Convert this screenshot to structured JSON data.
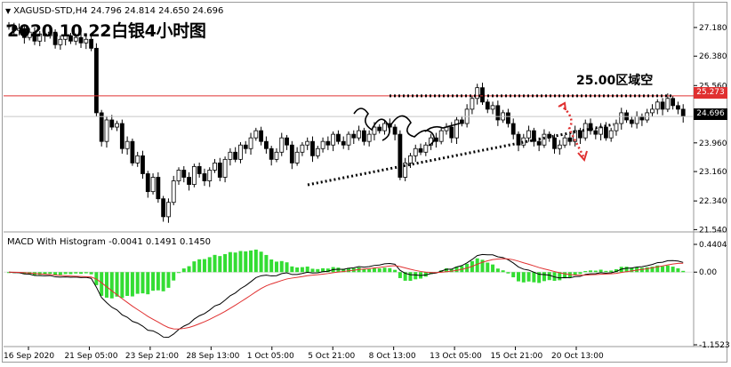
{
  "header": {
    "symbol": "XAGUSD-STD,H4",
    "ohlc": "24.796 24.814 24.650 24.696",
    "headline": "2020.10.22白银4小时图"
  },
  "annotations": {
    "zone_label": "25.00区域空",
    "resistance_level": 25.273,
    "current_price": 24.696
  },
  "macd": {
    "title": "MACD With Histogram",
    "values": "-0.0041 0.1491 0.1450",
    "y_ticks": [
      "0.4404",
      "0.00",
      "-1.1523"
    ]
  },
  "price_tags": {
    "resistance": "25.273",
    "current": "24.696"
  },
  "colors": {
    "bull": "#ffffff",
    "bear": "#000000",
    "resistance_line": "#e03030",
    "macd_hist": "#33dd33",
    "signal_line": "#e03030",
    "macd_line": "#000000",
    "arrow": "#e03030"
  },
  "chart_data": {
    "type": "candlestick",
    "title": "2020.10.22白银4小时图",
    "ylim": [
      21.5,
      27.6
    ],
    "y_ticks": [
      27.18,
      26.38,
      25.56,
      24.76,
      23.96,
      23.16,
      22.34,
      21.54
    ],
    "x_ticks": [
      "16 Sep 2020",
      "21 Sep 05:00",
      "23 Sep 21:00",
      "28 Sep 13:00",
      "1 Oct 05:00",
      "5 Oct 21:00",
      "8 Oct 13:00",
      "13 Oct 05:00",
      "15 Oct 21:00",
      "20 Oct 13:00"
    ],
    "close": [
      27.2,
      27.1,
      27.15,
      26.9,
      27.05,
      26.8,
      27.0,
      26.95,
      27.05,
      26.7,
      26.85,
      26.95,
      26.8,
      26.9,
      26.75,
      26.85,
      26.6,
      24.8,
      24.0,
      24.6,
      24.4,
      24.5,
      23.8,
      24.0,
      23.4,
      23.6,
      23.1,
      22.6,
      23.0,
      22.4,
      21.9,
      22.3,
      22.9,
      23.2,
      23.0,
      22.8,
      23.3,
      23.1,
      22.9,
      23.2,
      23.4,
      23.0,
      23.5,
      23.7,
      23.5,
      23.9,
      23.8,
      24.1,
      24.3,
      24.0,
      23.8,
      23.5,
      23.7,
      24.1,
      23.9,
      23.4,
      23.7,
      23.9,
      24.0,
      23.6,
      23.8,
      24.0,
      23.9,
      24.2,
      24.0,
      23.9,
      24.2,
      24.1,
      24.3,
      24.0,
      24.2,
      24.4,
      24.3,
      24.5,
      24.4,
      24.2,
      23.0,
      23.4,
      23.6,
      23.8,
      23.7,
      23.9,
      24.1,
      24.0,
      24.3,
      24.4,
      24.1,
      24.6,
      24.5,
      24.9,
      25.2,
      25.5,
      25.1,
      24.9,
      25.0,
      24.6,
      24.8,
      24.5,
      24.2,
      23.9,
      24.1,
      24.3,
      24.0,
      23.9,
      24.2,
      24.1,
      23.8,
      23.9,
      24.1,
      24.0,
      24.3,
      24.1,
      24.5,
      24.3,
      24.2,
      24.4,
      24.1,
      24.3,
      24.5,
      24.8,
      24.6,
      24.5,
      24.7,
      24.6,
      24.8,
      24.9,
      25.1,
      24.9,
      25.2,
      25.0,
      24.9,
      24.696
    ],
    "resistance": 25.273,
    "last_price": 24.696,
    "macd": {
      "title": "MACD With Histogram",
      "ylim": [
        -1.1523,
        0.4404
      ],
      "histogram": "MACD minus signal, green bars",
      "lines": [
        "MACD (black)",
        "Signal (red)"
      ]
    }
  }
}
